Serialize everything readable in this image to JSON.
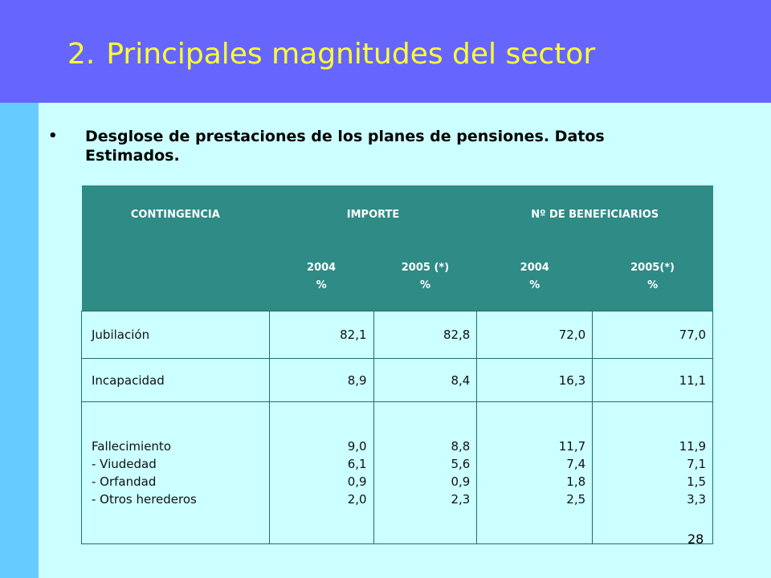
{
  "slide": {
    "number": "2.",
    "title": "Principales magnitudes del sector",
    "bullet": "Desglose de prestaciones de los planes de pensiones. Datos Estimados.",
    "page_number": "28",
    "colors": {
      "header_band": "#6666ff",
      "title_text": "#ffff33",
      "background": "#ccffff",
      "left_strip": "#66ccff",
      "table_header": "#2e8b86"
    }
  },
  "table": {
    "headers": {
      "contingencia": "CONTINGENCIA",
      "importe": "IMPORTE",
      "beneficiarios": "Nº DE BENEFICIARIOS"
    },
    "subheaders": [
      {
        "year": "2004",
        "unit": "%"
      },
      {
        "year": "2005 (*)",
        "unit": "%"
      },
      {
        "year": "2004",
        "unit": "%"
      },
      {
        "year": "2005(*)",
        "unit": "%"
      }
    ],
    "rows": [
      {
        "label": "Jubilación",
        "values": [
          "82,1",
          "82,8",
          "72,0",
          "77,0"
        ]
      },
      {
        "label": "Incapacidad",
        "values": [
          "8,9",
          "8,4",
          "16,3",
          "11,1"
        ]
      },
      {
        "labels": [
          "Fallecimiento",
          "- Viudedad",
          "- Orfandad",
          "- Otros herederos"
        ],
        "columns": [
          [
            "9,0",
            "6,1",
            "0,9",
            "2,0"
          ],
          [
            "8,8",
            "5,6",
            "0,9",
            "2,3"
          ],
          [
            "11,7",
            "7,4",
            "1,8",
            "2,5"
          ],
          [
            "11,9",
            "7,1",
            "1,5",
            "3,3"
          ]
        ]
      }
    ]
  }
}
